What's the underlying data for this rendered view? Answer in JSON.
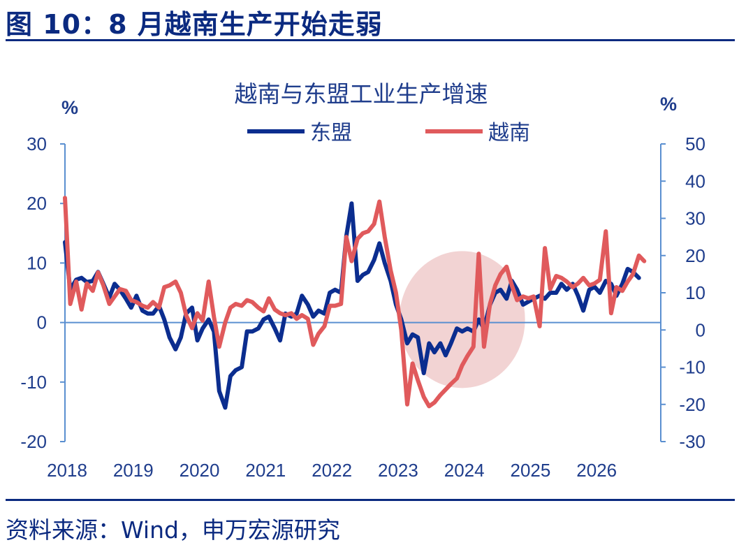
{
  "figure": {
    "title": "图 10：8 月越南生产开始走弱",
    "source": "资料来源：Wind，申万宏源研究"
  },
  "chart_data": {
    "type": "line",
    "title": "越南与东盟工业生产增速",
    "left_unit": "%",
    "right_unit": "%",
    "left_ylim": [
      -20,
      30
    ],
    "right_ylim": [
      -30,
      50
    ],
    "left_ticks": [
      "30",
      "20",
      "10",
      "0",
      "-10",
      "-20"
    ],
    "right_ticks": [
      "50",
      "40",
      "30",
      "20",
      "10",
      "0",
      "-10",
      "-20",
      "-30"
    ],
    "x_labels": [
      "2018",
      "2019",
      "2020",
      "2021",
      "2022",
      "2023",
      "2024",
      "2025",
      "2026"
    ],
    "x_range": [
      2018.0,
      2027.0
    ],
    "legend_position": "top",
    "highlight_ellipse": {
      "x_center": 2024.0,
      "y_center_left": 0.5,
      "x_radius": 0.95,
      "y_radius_left": 11.5,
      "color": "#f2d3d3"
    },
    "series": [
      {
        "name": "东盟",
        "axis": "left",
        "color": "#0b2d8f",
        "points": [
          [
            2018.0,
            13.5
          ],
          [
            2018.08,
            5.5
          ],
          [
            2018.17,
            7.2
          ],
          [
            2018.25,
            7.5
          ],
          [
            2018.33,
            6.8
          ],
          [
            2018.42,
            7.0
          ],
          [
            2018.5,
            8.5
          ],
          [
            2018.58,
            6.5
          ],
          [
            2018.67,
            4.2
          ],
          [
            2018.75,
            6.5
          ],
          [
            2018.83,
            5.5
          ],
          [
            2018.92,
            4.0
          ],
          [
            2019.0,
            2.5
          ],
          [
            2019.08,
            4.5
          ],
          [
            2019.17,
            2.0
          ],
          [
            2019.25,
            1.5
          ],
          [
            2019.33,
            1.5
          ],
          [
            2019.42,
            2.8
          ],
          [
            2019.5,
            0.5
          ],
          [
            2019.58,
            -2.5
          ],
          [
            2019.67,
            -4.5
          ],
          [
            2019.75,
            -2.5
          ],
          [
            2019.83,
            1.5
          ],
          [
            2019.92,
            2.5
          ],
          [
            2020.0,
            -3.0
          ],
          [
            2020.08,
            -1.0
          ],
          [
            2020.17,
            0.5
          ],
          [
            2020.25,
            -1.5
          ],
          [
            2020.33,
            -11.5
          ],
          [
            2020.42,
            -14.3
          ],
          [
            2020.5,
            -9.0
          ],
          [
            2020.58,
            -8.0
          ],
          [
            2020.67,
            -7.5
          ],
          [
            2020.75,
            -1.5
          ],
          [
            2020.83,
            -1.5
          ],
          [
            2020.92,
            -1.0
          ],
          [
            2021.0,
            0.5
          ],
          [
            2021.08,
            1.0
          ],
          [
            2021.17,
            -1.0
          ],
          [
            2021.25,
            -3.0
          ],
          [
            2021.33,
            1.5
          ],
          [
            2021.42,
            1.0
          ],
          [
            2021.5,
            1.5
          ],
          [
            2021.58,
            4.5
          ],
          [
            2021.67,
            3.0
          ],
          [
            2021.75,
            1.0
          ],
          [
            2021.83,
            2.0
          ],
          [
            2021.92,
            1.5
          ],
          [
            2022.0,
            5.0
          ],
          [
            2022.08,
            5.5
          ],
          [
            2022.17,
            5.0
          ],
          [
            2022.25,
            14.5
          ],
          [
            2022.33,
            20.0
          ],
          [
            2022.42,
            7.0
          ],
          [
            2022.5,
            8.0
          ],
          [
            2022.58,
            8.5
          ],
          [
            2022.67,
            10.5
          ],
          [
            2022.75,
            13.3
          ],
          [
            2022.83,
            10.0
          ],
          [
            2022.92,
            7.0
          ],
          [
            2023.0,
            3.0
          ],
          [
            2023.08,
            0.5
          ],
          [
            2023.17,
            -3.5
          ],
          [
            2023.25,
            -2.0
          ],
          [
            2023.33,
            -2.5
          ],
          [
            2023.42,
            -8.5
          ],
          [
            2023.5,
            -3.5
          ],
          [
            2023.58,
            -5.0
          ],
          [
            2023.67,
            -3.5
          ],
          [
            2023.75,
            -5.5
          ],
          [
            2023.83,
            -3.5
          ],
          [
            2023.92,
            -1.0
          ],
          [
            2024.0,
            -1.5
          ],
          [
            2024.08,
            -1.0
          ],
          [
            2024.17,
            -1.5
          ],
          [
            2024.25,
            0.5
          ],
          [
            2024.33,
            -1.0
          ],
          [
            2024.42,
            3.0
          ],
          [
            2024.5,
            5.0
          ],
          [
            2024.58,
            5.5
          ],
          [
            2024.67,
            4.0
          ],
          [
            2024.75,
            7.0
          ],
          [
            2024.83,
            5.5
          ],
          [
            2024.92,
            3.0
          ],
          [
            2025.0,
            3.5
          ],
          [
            2025.08,
            4.0
          ],
          [
            2025.17,
            4.5
          ],
          [
            2025.25,
            4.0
          ],
          [
            2025.33,
            5.0
          ],
          [
            2025.42,
            5.0
          ],
          [
            2025.5,
            6.5
          ],
          [
            2025.58,
            5.5
          ],
          [
            2025.67,
            6.5
          ],
          [
            2025.75,
            4.5
          ],
          [
            2025.83,
            2.0
          ],
          [
            2025.92,
            5.5
          ],
          [
            2026.0,
            6.0
          ],
          [
            2026.08,
            5.0
          ],
          [
            2026.17,
            7.0
          ],
          [
            2026.25,
            6.5
          ],
          [
            2026.33,
            4.5
          ],
          [
            2026.42,
            6.5
          ],
          [
            2026.5,
            9.0
          ],
          [
            2026.58,
            8.5
          ],
          [
            2026.67,
            7.5
          ]
        ]
      },
      {
        "name": "越南",
        "axis": "right",
        "color": "#e05a5c",
        "points": [
          [
            2018.0,
            35.5
          ],
          [
            2018.08,
            7.0
          ],
          [
            2018.17,
            13.0
          ],
          [
            2018.25,
            5.5
          ],
          [
            2018.33,
            12.5
          ],
          [
            2018.42,
            10.5
          ],
          [
            2018.5,
            15.5
          ],
          [
            2018.58,
            12.0
          ],
          [
            2018.67,
            7.0
          ],
          [
            2018.75,
            9.0
          ],
          [
            2018.83,
            11.0
          ],
          [
            2018.92,
            10.5
          ],
          [
            2019.0,
            8.0
          ],
          [
            2019.08,
            7.5
          ],
          [
            2019.17,
            6.5
          ],
          [
            2019.25,
            6.0
          ],
          [
            2019.33,
            7.5
          ],
          [
            2019.42,
            6.0
          ],
          [
            2019.5,
            11.5
          ],
          [
            2019.58,
            12.0
          ],
          [
            2019.67,
            13.0
          ],
          [
            2019.75,
            10.0
          ],
          [
            2019.83,
            4.0
          ],
          [
            2019.92,
            0.5
          ],
          [
            2020.0,
            4.5
          ],
          [
            2020.08,
            2.5
          ],
          [
            2020.17,
            13.0
          ],
          [
            2020.25,
            3.5
          ],
          [
            2020.33,
            -4.5
          ],
          [
            2020.42,
            2.0
          ],
          [
            2020.5,
            6.0
          ],
          [
            2020.58,
            7.0
          ],
          [
            2020.67,
            6.5
          ],
          [
            2020.75,
            8.0
          ],
          [
            2020.83,
            7.5
          ],
          [
            2020.92,
            6.0
          ],
          [
            2021.0,
            5.0
          ],
          [
            2021.08,
            8.5
          ],
          [
            2021.17,
            5.5
          ],
          [
            2021.25,
            4.5
          ],
          [
            2021.33,
            4.0
          ],
          [
            2021.42,
            4.5
          ],
          [
            2021.5,
            3.0
          ],
          [
            2021.58,
            4.0
          ],
          [
            2021.67,
            3.0
          ],
          [
            2021.75,
            -4.0
          ],
          [
            2021.83,
            -1.0
          ],
          [
            2021.92,
            1.0
          ],
          [
            2022.0,
            6.5
          ],
          [
            2022.08,
            6.5
          ],
          [
            2022.17,
            7.0
          ],
          [
            2022.25,
            25.0
          ],
          [
            2022.33,
            18.5
          ],
          [
            2022.42,
            24.5
          ],
          [
            2022.5,
            26.0
          ],
          [
            2022.58,
            26.5
          ],
          [
            2022.67,
            28.5
          ],
          [
            2022.75,
            34.5
          ],
          [
            2022.83,
            25.0
          ],
          [
            2022.92,
            16.0
          ],
          [
            2023.0,
            10.0
          ],
          [
            2023.08,
            0.0
          ],
          [
            2023.17,
            -20.0
          ],
          [
            2023.25,
            -9.0
          ],
          [
            2023.33,
            -13.5
          ],
          [
            2023.42,
            -18.0
          ],
          [
            2023.5,
            -20.5
          ],
          [
            2023.58,
            -19.5
          ],
          [
            2023.67,
            -17.5
          ],
          [
            2023.75,
            -16.0
          ],
          [
            2023.83,
            -14.5
          ],
          [
            2023.92,
            -13.0
          ],
          [
            2024.0,
            -9.5
          ],
          [
            2024.08,
            -7.0
          ],
          [
            2024.17,
            -4.5
          ],
          [
            2024.25,
            20.5
          ],
          [
            2024.33,
            -4.5
          ],
          [
            2024.42,
            7.0
          ],
          [
            2024.5,
            12.0
          ],
          [
            2024.58,
            15.0
          ],
          [
            2024.67,
            17.0
          ],
          [
            2024.75,
            12.0
          ],
          [
            2024.83,
            8.0
          ],
          [
            2024.92,
            9.0
          ],
          [
            2025.0,
            8.5
          ],
          [
            2025.08,
            9.0
          ],
          [
            2025.17,
            1.0
          ],
          [
            2025.25,
            22.0
          ],
          [
            2025.33,
            11.0
          ],
          [
            2025.42,
            14.5
          ],
          [
            2025.5,
            14.0
          ],
          [
            2025.58,
            13.0
          ],
          [
            2025.67,
            11.5
          ],
          [
            2025.75,
            12.5
          ],
          [
            2025.83,
            14.0
          ],
          [
            2025.92,
            12.0
          ],
          [
            2026.0,
            12.5
          ],
          [
            2026.08,
            13.5
          ],
          [
            2026.17,
            26.5
          ],
          [
            2026.25,
            4.5
          ],
          [
            2026.33,
            11.5
          ],
          [
            2026.42,
            10.5
          ],
          [
            2026.5,
            13.0
          ],
          [
            2026.58,
            15.0
          ],
          [
            2026.67,
            20.0
          ],
          [
            2026.75,
            18.5
          ]
        ]
      }
    ]
  }
}
